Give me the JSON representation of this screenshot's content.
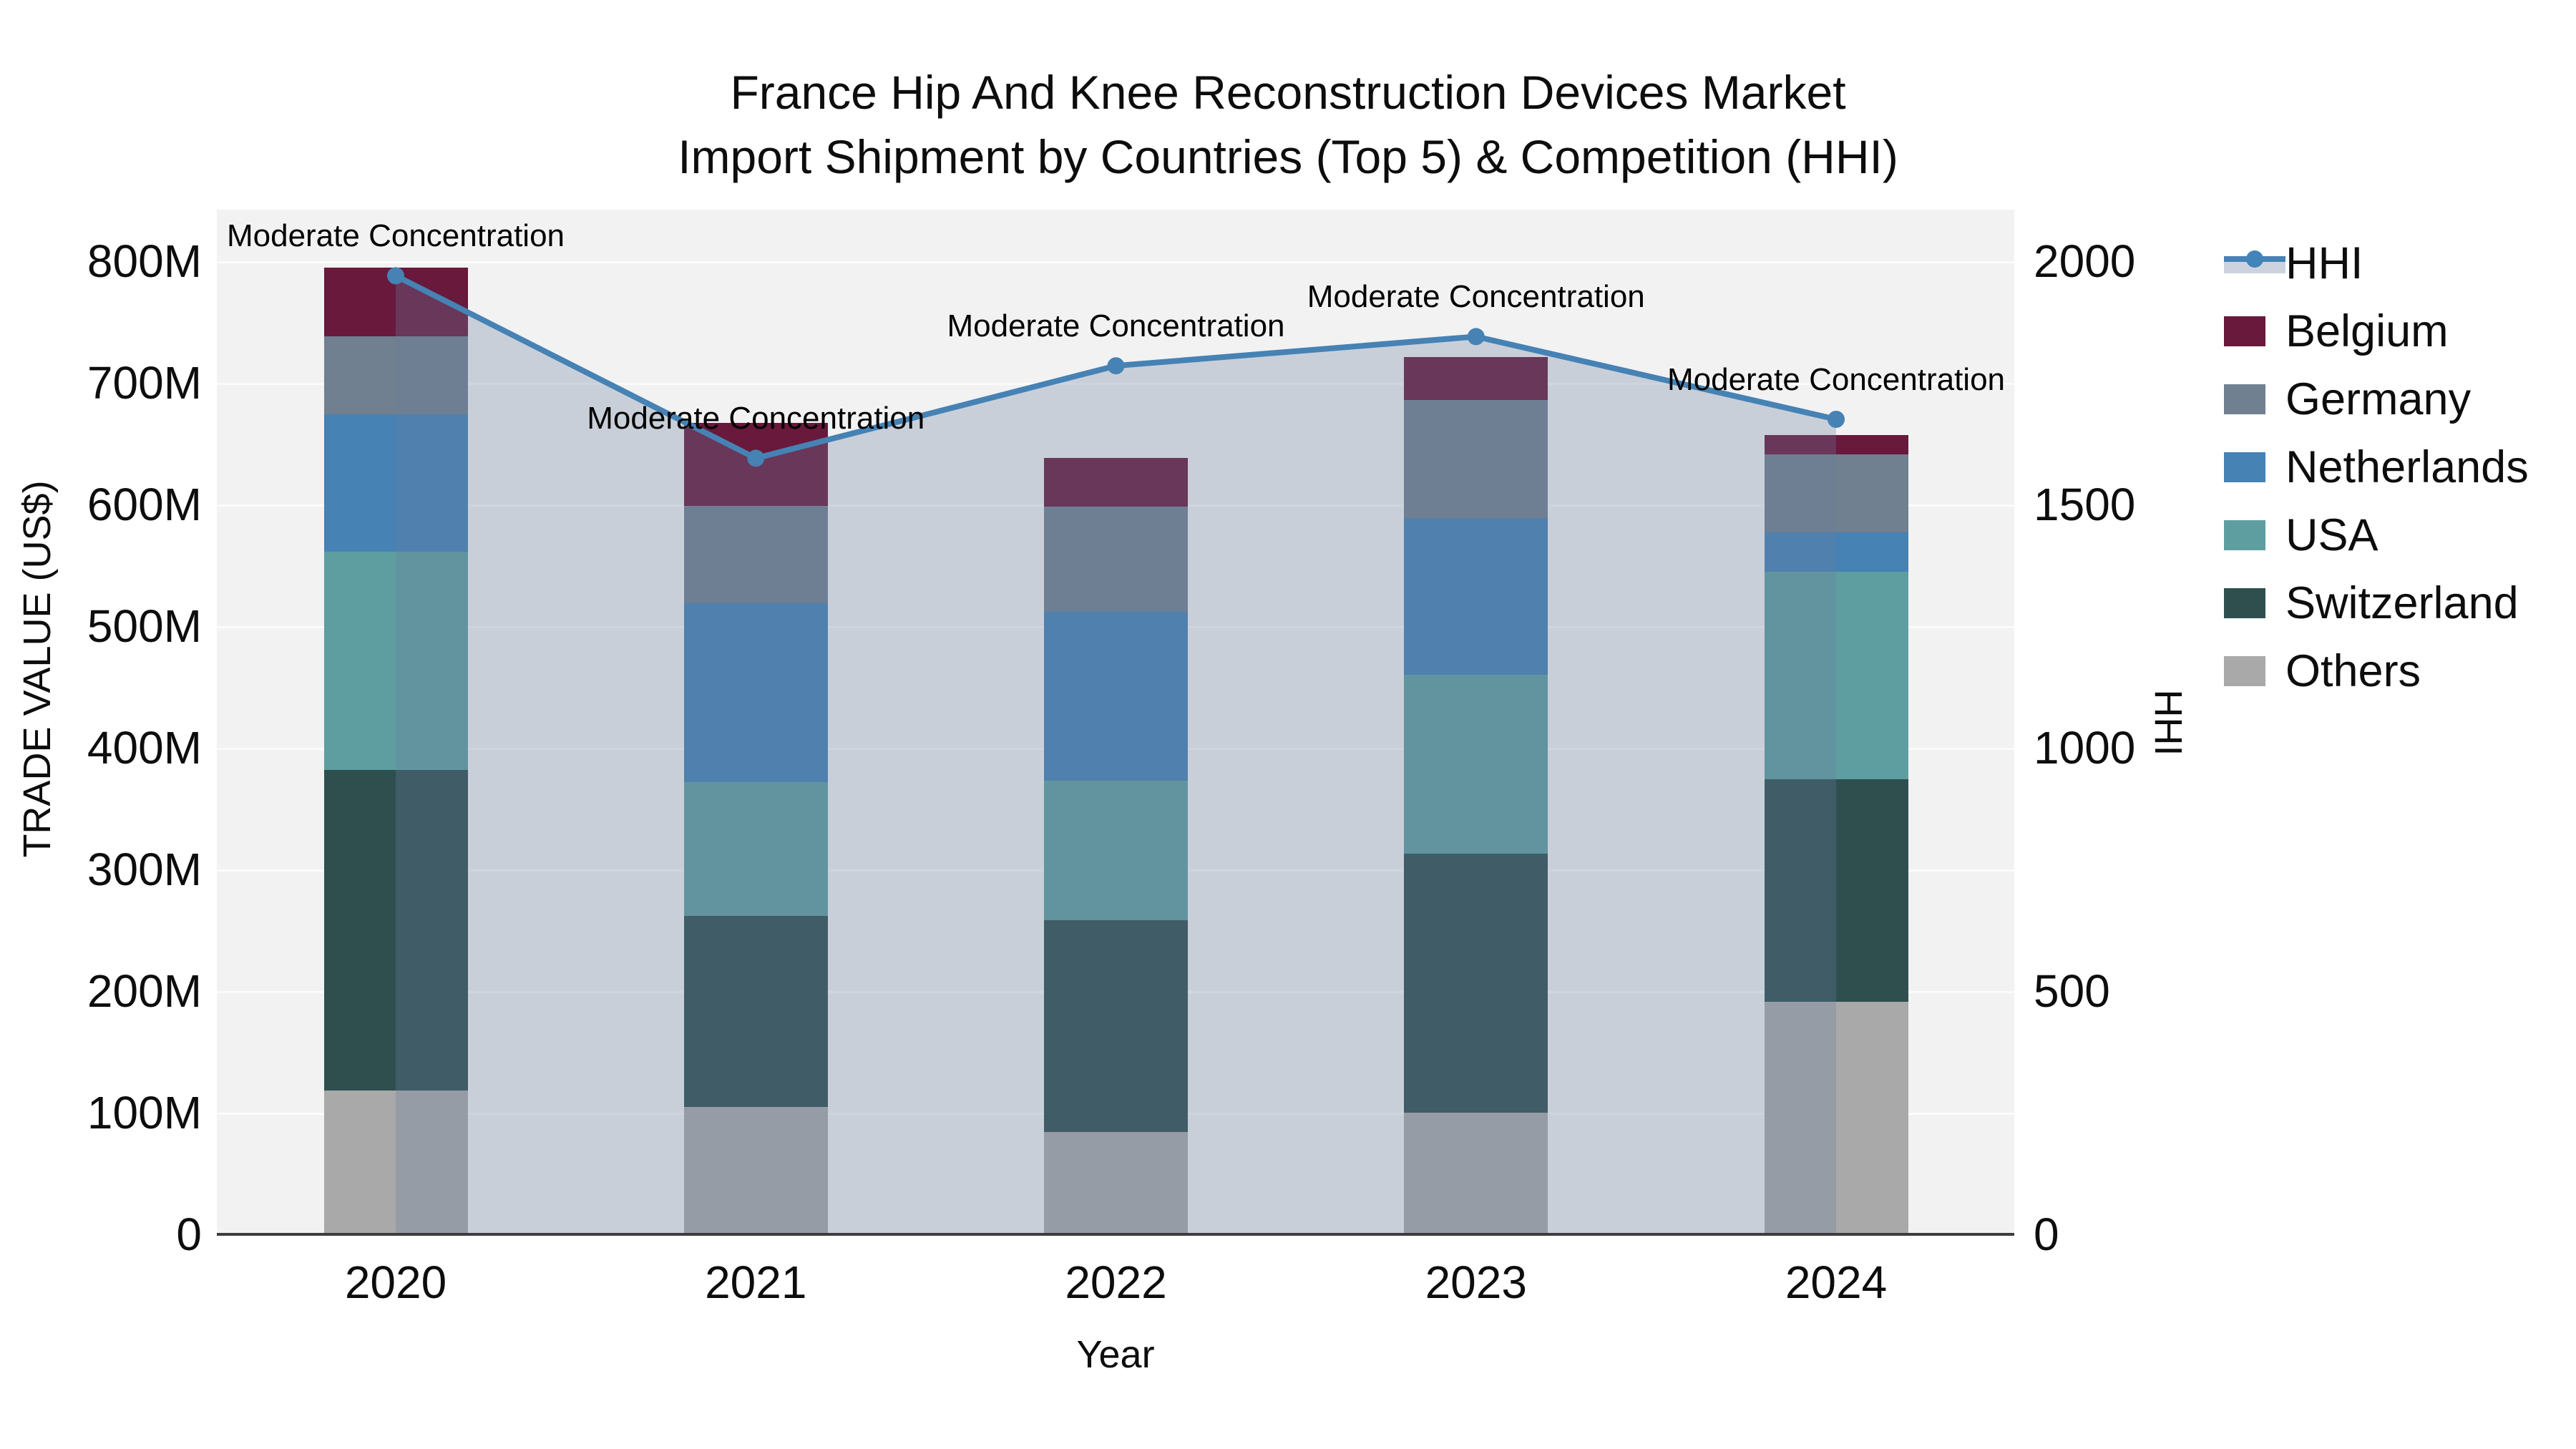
{
  "title": {
    "line1": "France Hip And Knee Reconstruction Devices Market",
    "line2": "Import Shipment by Countries (Top 5) & Competition (HHI)"
  },
  "chart_data": {
    "type": "combo: stacked-bar + line(area)",
    "categories": [
      "2020",
      "2021",
      "2022",
      "2023",
      "2024"
    ],
    "bar_series_bottom_to_top": [
      {
        "name": "Others",
        "color": "#a9a9a9",
        "values": [
          118,
          105,
          84,
          100,
          191
        ]
      },
      {
        "name": "Switzerland",
        "color": "#2f4f4f",
        "values": [
          264,
          157,
          174,
          213,
          183
        ]
      },
      {
        "name": "USA",
        "color": "#5f9ea0",
        "values": [
          179,
          110,
          115,
          147,
          171
        ]
      },
      {
        "name": "Netherlands",
        "color": "#4682b4",
        "values": [
          113,
          147,
          139,
          129,
          32
        ]
      },
      {
        "name": "Germany",
        "color": "#708090",
        "values": [
          64,
          80,
          86,
          97,
          64
        ]
      },
      {
        "name": "Belgium",
        "color": "#68193c",
        "values": [
          57,
          68,
          40,
          35,
          16
        ]
      }
    ],
    "line_series": {
      "name": "HHI",
      "color": "#4682b4",
      "area_fill": "rgba(105,125,160,0.30)",
      "values": [
        1970,
        1595,
        1785,
        1845,
        1675
      ]
    },
    "annotations": {
      "text": "Moderate Concentration",
      "per_point": [
        "Moderate Concentration",
        "Moderate Concentration",
        "Moderate Concentration",
        "Moderate Concentration",
        "Moderate Concentration"
      ]
    },
    "y_left": {
      "label": "TRADE VALUE (US$)",
      "tick_values": [
        0,
        100,
        200,
        300,
        400,
        500,
        600,
        700,
        800
      ],
      "tick_labels": [
        "0",
        "100M",
        "200M",
        "300M",
        "400M",
        "500M",
        "600M",
        "700M",
        "800M"
      ],
      "range": [
        0,
        843
      ]
    },
    "y_right": {
      "label": "HHI",
      "tick_values": [
        0,
        500,
        1000,
        1500,
        2000
      ],
      "tick_labels": [
        "0",
        "500",
        "1000",
        "1500",
        "2000"
      ],
      "range": [
        0,
        2107
      ]
    },
    "x": {
      "label": "Year"
    },
    "grid": "horizontal",
    "legend_position": "right"
  },
  "legend": {
    "items": [
      {
        "label": "HHI",
        "type": "line"
      },
      {
        "label": "Belgium",
        "type": "swatch",
        "color": "#68193c"
      },
      {
        "label": "Germany",
        "type": "swatch",
        "color": "#708090"
      },
      {
        "label": "Netherlands",
        "type": "swatch",
        "color": "#4682b4"
      },
      {
        "label": "USA",
        "type": "swatch",
        "color": "#5f9ea0"
      },
      {
        "label": "Switzerland",
        "type": "swatch",
        "color": "#2f4f4f"
      },
      {
        "label": "Others",
        "type": "swatch",
        "color": "#a9a9a9"
      }
    ]
  }
}
